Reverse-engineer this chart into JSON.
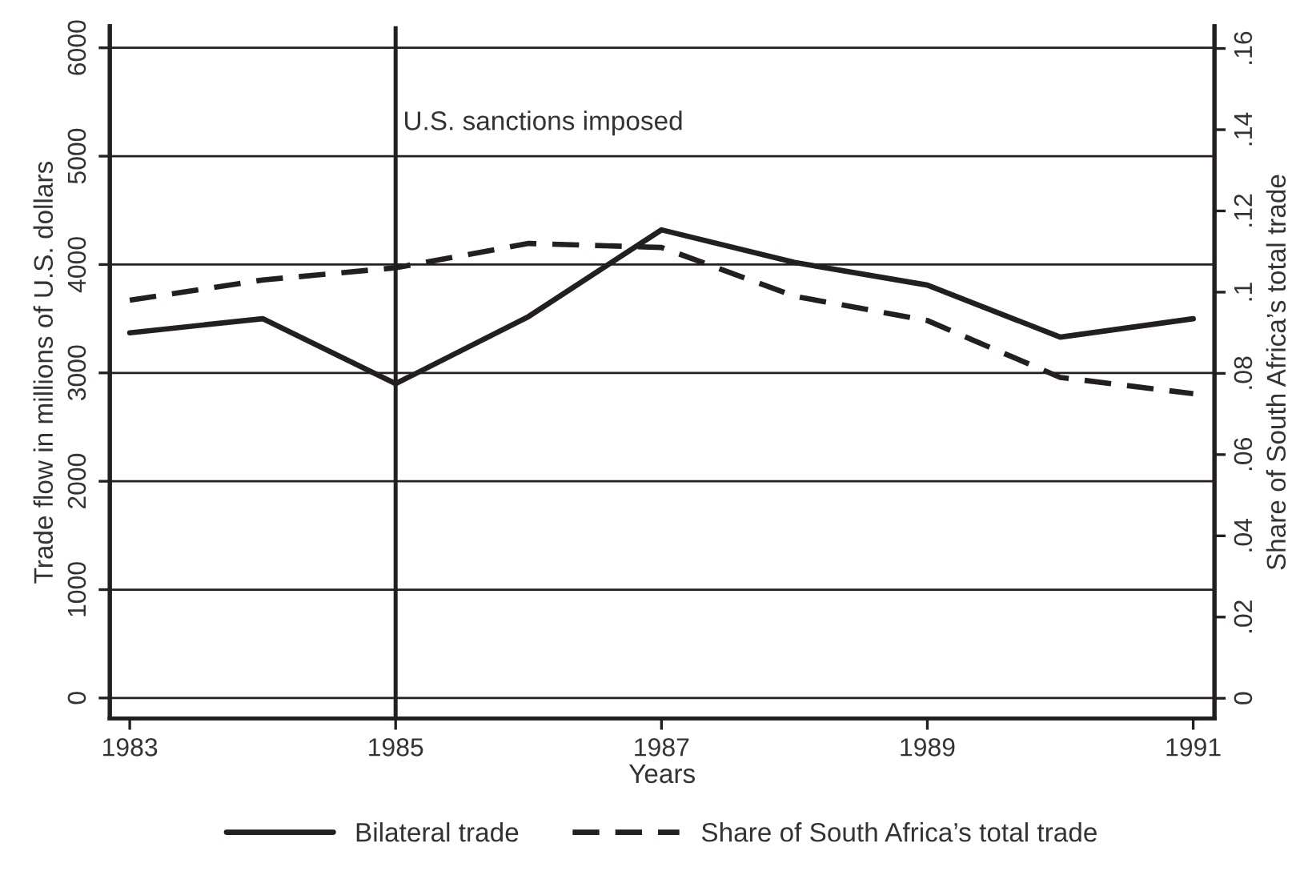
{
  "chart_data": {
    "type": "line",
    "xlabel": "Years",
    "ylabel": "Trade flow in millions of U.S. dollars",
    "y2label": "Share of South Africa’s total trade",
    "x": [
      1983,
      1984,
      1985,
      1986,
      1987,
      1988,
      1989,
      1990,
      1991
    ],
    "series": [
      {
        "name": "Bilateral trade",
        "color": "#231f20",
        "line_style": "solid",
        "values": [
          3370,
          3500,
          2900,
          3520,
          4320,
          4020,
          3810,
          3330,
          3500
        ]
      },
      {
        "name": "Share of South Africa’s total trade",
        "color": "#231f20",
        "line_style": "dashed",
        "axis": "y2",
        "values": [
          0.098,
          0.103,
          0.106,
          0.112,
          0.111,
          0.099,
          0.093,
          0.079,
          0.075
        ]
      }
    ],
    "xlim": [
      1982.85,
      1991.16
    ],
    "xticks": [
      1983,
      1985,
      1987,
      1989,
      1991
    ],
    "ylim": [
      -190,
      6200
    ],
    "yticks": [
      0,
      1000,
      2000,
      3000,
      4000,
      5000,
      6000
    ],
    "y2lim": [
      -0.005,
      0.1655
    ],
    "y2ticks": [
      {
        "value": 0,
        "label": "0"
      },
      {
        "value": 0.02,
        "label": ".02"
      },
      {
        "value": 0.04,
        "label": ".04"
      },
      {
        "value": 0.06,
        "label": ".06"
      },
      {
        "value": 0.08,
        "label": ".08"
      },
      {
        "value": 0.1,
        "label": ".1"
      },
      {
        "value": 0.12,
        "label": ".12"
      },
      {
        "value": 0.14,
        "label": ".14"
      },
      {
        "value": 0.16,
        "label": ".16"
      }
    ],
    "ref_lines": [
      {
        "axis": "x",
        "value": 1985,
        "label": "U.S. sanctions imposed",
        "color": "#231f20"
      }
    ],
    "grid": "y",
    "legend": "bottom",
    "marker": "none"
  }
}
